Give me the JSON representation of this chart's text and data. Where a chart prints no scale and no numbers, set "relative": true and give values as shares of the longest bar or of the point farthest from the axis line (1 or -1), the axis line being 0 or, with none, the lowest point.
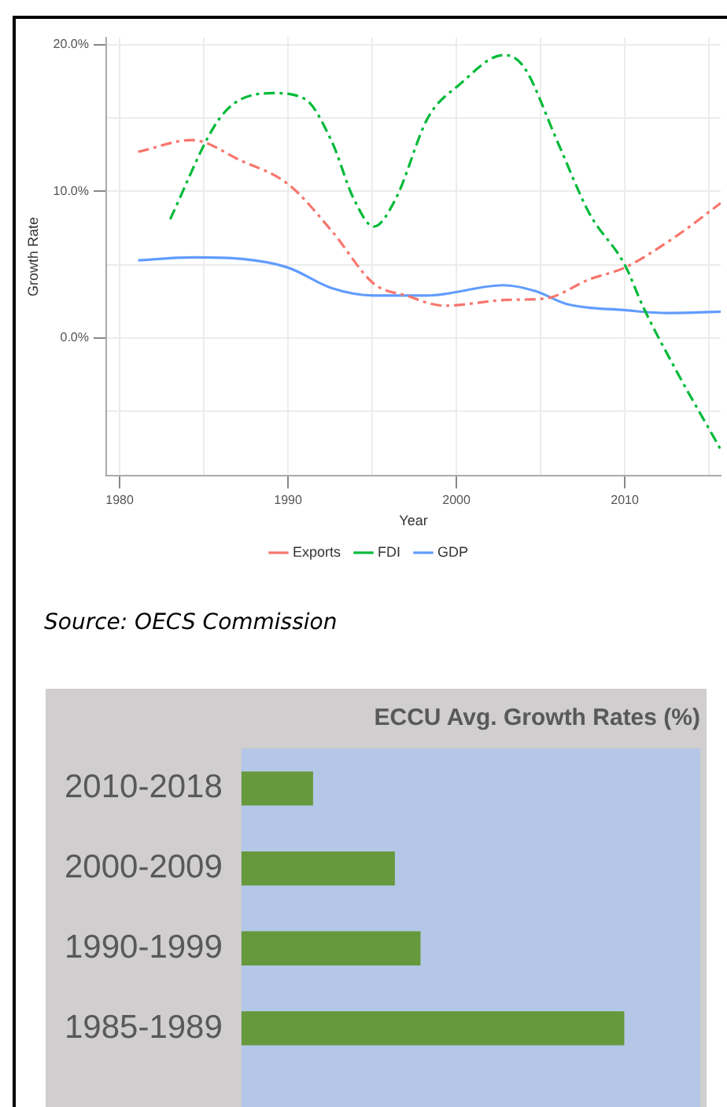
{
  "chart_data": [
    {
      "type": "line",
      "xlabel": "Year",
      "ylabel": "Growth Rate",
      "xlim": [
        1979.2,
        2015.7
      ],
      "ylim": [
        -9.4,
        20.5
      ],
      "xticks": [
        1980,
        {
          "value": 1985,
          "label": null
        },
        1990,
        {
          "value": 1995,
          "label": null
        },
        2000,
        {
          "value": 2005,
          "label": null
        },
        2010,
        {
          "value": 2015,
          "label": null
        }
      ],
      "yticks": [
        {
          "value": -5,
          "label": null
        },
        {
          "value": 0,
          "label": "0.0%"
        },
        {
          "value": 5,
          "label": null
        },
        {
          "value": 10,
          "label": "10.0%"
        },
        {
          "value": 15,
          "label": null
        },
        {
          "value": 20,
          "label": "20.0%"
        }
      ],
      "grid": true,
      "legend": "bottom",
      "annotations": [
        "Source: OECS Commission"
      ],
      "series": [
        {
          "name": "Exports",
          "color": "#f8766d",
          "line_style": "dashed",
          "x": [
            1981.1,
            1984.3,
            1987.2,
            1990,
            1992.6,
            1995.1,
            1997,
            1999.3,
            2003,
            2005.3,
            2007.9,
            2010,
            2013,
            2015.7
          ],
          "values": [
            12.7,
            13.5,
            12.1,
            10.5,
            7.3,
            3.7,
            2.9,
            2.2,
            2.6,
            2.7,
            4.0,
            4.8,
            6.9,
            9.2
          ]
        },
        {
          "name": "FDI",
          "color": "#00ba38",
          "line_style": "dashed",
          "x": [
            1983,
            1985.6,
            1986.8,
            1989.1,
            1991,
            1992.6,
            1993.9,
            1995.1,
            1996.4,
            1998.3,
            2000.2,
            2002.8,
            2004,
            2006,
            2007.9,
            2010,
            2011.1,
            2013,
            2015.7
          ],
          "values": [
            8.1,
            14.4,
            16.0,
            16.7,
            16.3,
            13.4,
            9.5,
            7.6,
            9.5,
            15.0,
            17.3,
            19.3,
            18.5,
            13.4,
            8.5,
            5.0,
            2.1,
            -2.1,
            -7.6
          ]
        },
        {
          "name": "GDP",
          "color": "#619cff",
          "line_style": "solid",
          "x": [
            1981.1,
            1984.3,
            1987.2,
            1990,
            1992.6,
            1995.1,
            1998.3,
            2002.8,
            2004.7,
            2006.6,
            2010,
            2012.6,
            2015.7
          ],
          "values": [
            5.3,
            5.5,
            5.4,
            4.8,
            3.4,
            2.9,
            2.9,
            3.6,
            3.2,
            2.3,
            1.9,
            1.7,
            1.8
          ]
        }
      ]
    },
    {
      "type": "bar",
      "orientation": "horizontal",
      "relative": true,
      "title": "ECCU Avg. Growth Rates (%)",
      "categories": [
        "2010-2018",
        "2000-2009",
        "1990-1999",
        "1985-1989"
      ],
      "values": [
        0.186,
        0.4,
        0.467,
        1
      ],
      "color": "#66993c"
    }
  ]
}
